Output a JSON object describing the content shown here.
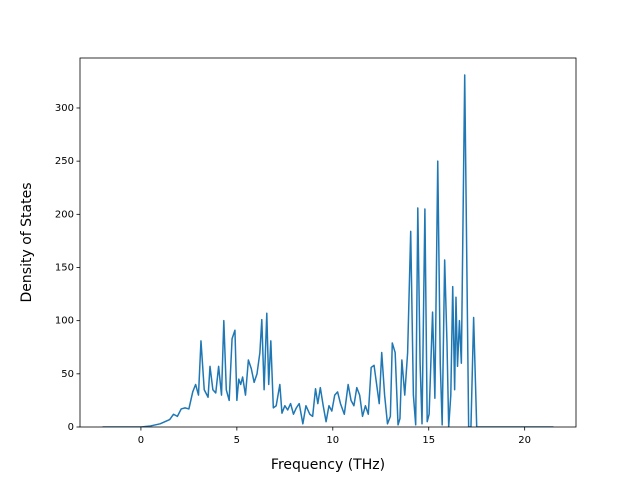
{
  "chart_data": {
    "type": "line",
    "xlabel": "Frequency (THz)",
    "ylabel": "Density of States",
    "x": [
      -2,
      0,
      0.5,
      1,
      1.5,
      1.7,
      1.9,
      2.1,
      2.3,
      2.5,
      2.7,
      2.85,
      3.0,
      3.13,
      3.3,
      3.5,
      3.6,
      3.75,
      3.9,
      4.05,
      4.2,
      4.32,
      4.45,
      4.6,
      4.75,
      4.9,
      5.0,
      5.1,
      5.2,
      5.3,
      5.45,
      5.6,
      5.75,
      5.9,
      6.05,
      6.2,
      6.3,
      6.42,
      6.56,
      6.66,
      6.77,
      6.9,
      7.05,
      7.24,
      7.35,
      7.5,
      7.65,
      7.8,
      7.95,
      8.1,
      8.25,
      8.44,
      8.6,
      8.8,
      8.95,
      9.1,
      9.22,
      9.35,
      9.5,
      9.65,
      9.8,
      9.95,
      10.1,
      10.25,
      10.4,
      10.6,
      10.8,
      10.95,
      11.1,
      11.25,
      11.4,
      11.55,
      11.7,
      11.85,
      12.0,
      12.15,
      12.3,
      12.42,
      12.55,
      12.7,
      12.85,
      13.0,
      13.1,
      13.25,
      13.4,
      13.5,
      13.6,
      13.75,
      13.9,
      14.06,
      14.2,
      14.32,
      14.43,
      14.55,
      14.65,
      14.8,
      14.92,
      15.02,
      15.2,
      15.32,
      15.47,
      15.6,
      15.7,
      15.83,
      15.95,
      16.04,
      16.15,
      16.25,
      16.35,
      16.42,
      16.5,
      16.6,
      16.7,
      16.875,
      17.08,
      17.2,
      17.34,
      17.5,
      18,
      21.5
    ],
    "series": [
      {
        "color": "#1f77b4",
        "values": [
          0,
          0,
          1,
          3,
          7,
          12,
          10,
          17,
          18,
          17,
          33,
          40,
          30,
          81,
          35,
          28,
          57,
          35,
          32,
          57,
          30,
          100,
          35,
          25,
          83,
          91,
          25,
          45,
          40,
          47,
          30,
          63,
          55,
          42,
          50,
          70,
          101,
          35,
          107,
          40,
          81,
          18,
          20,
          40,
          13,
          20,
          16,
          22,
          12,
          18,
          22,
          3,
          20,
          12,
          10,
          36,
          22,
          37,
          20,
          5,
          20,
          15,
          30,
          33,
          22,
          12,
          40,
          25,
          20,
          37,
          30,
          10,
          20,
          12,
          56,
          58,
          38,
          22,
          70,
          30,
          3,
          10,
          79,
          70,
          2,
          8,
          63,
          30,
          70,
          184,
          30,
          2,
          206,
          60,
          3,
          205,
          5,
          12,
          108,
          27,
          250,
          60,
          2,
          157,
          80,
          0,
          30,
          132,
          35,
          122,
          57,
          100,
          60,
          331,
          0,
          0,
          103,
          0,
          0,
          0
        ]
      }
    ],
    "xlim": [
      -3.175,
      22.675
    ],
    "xticks": [
      0,
      5,
      10,
      15,
      20
    ],
    "ylim": [
      0,
      347
    ],
    "yticks": [
      0,
      50,
      100,
      150,
      200,
      250,
      300
    ]
  }
}
